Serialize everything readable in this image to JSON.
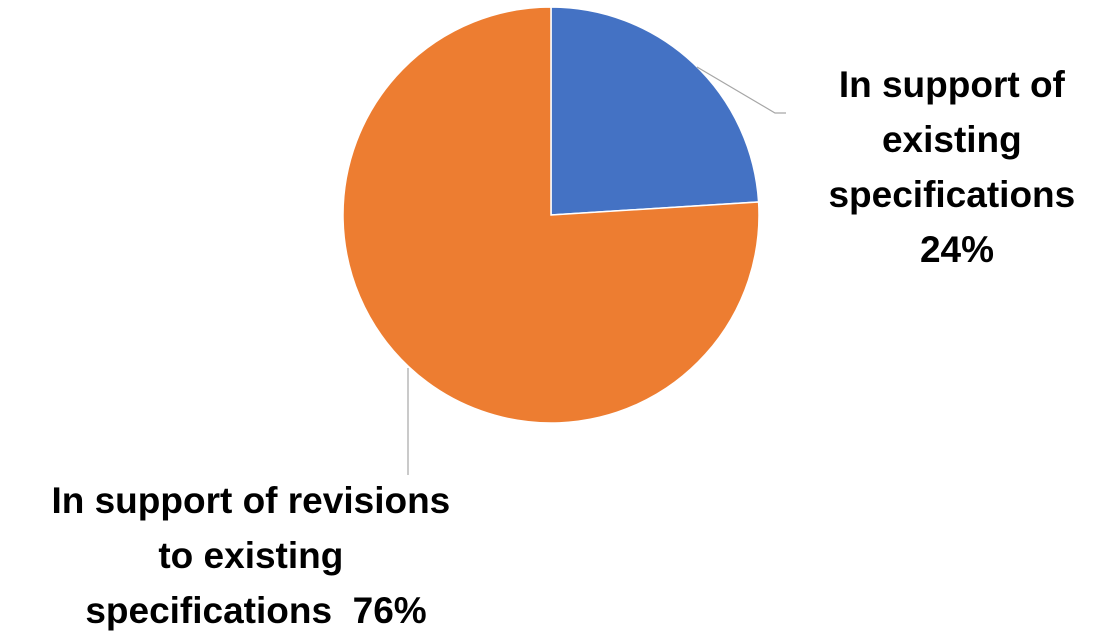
{
  "chart_data": {
    "type": "pie",
    "title": "",
    "slices": [
      {
        "label": "In support of existing specifications",
        "value": 24,
        "value_label": "24%",
        "color": "#4472c4"
      },
      {
        "label": "In support of revisions to existing specifications",
        "value": 76,
        "value_label": "76%",
        "color": "#ed7d31"
      }
    ],
    "data_labels": [
      {
        "slice": 0,
        "lines": [
          "In support of",
          "existing",
          "specifications",
          "24%"
        ]
      },
      {
        "slice": 1,
        "lines": [
          "In support of revisions",
          "to existing",
          "specifications  76%"
        ]
      }
    ],
    "legend": "none"
  }
}
